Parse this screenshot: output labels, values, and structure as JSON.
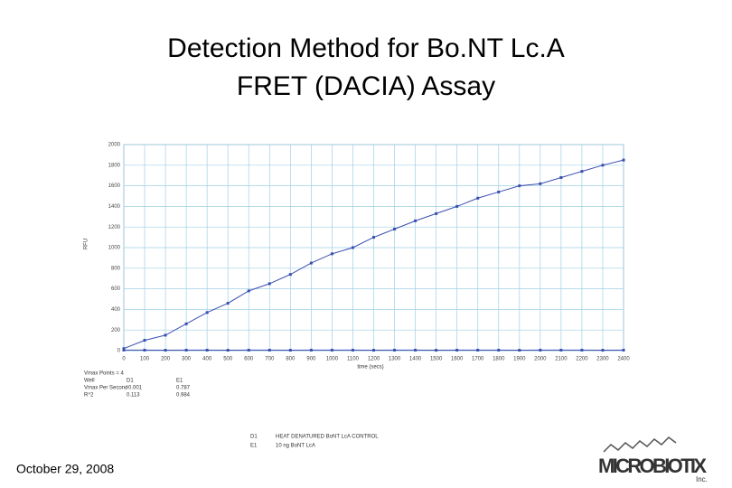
{
  "chart_data": {
    "type": "line",
    "title": [
      "Detection Method for Bo.NT Lc.A",
      "FRET (DACIA) Assay"
    ],
    "x_label": "time (secs)",
    "y_label": "RFU",
    "x": [
      0,
      100,
      200,
      300,
      400,
      500,
      600,
      700,
      800,
      900,
      1000,
      1100,
      1200,
      1300,
      1400,
      1500,
      1600,
      1700,
      1800,
      1900,
      2000,
      2100,
      2200,
      2300,
      2400
    ],
    "series": [
      {
        "name": "D1",
        "description": "HEAT DENATURED BoNT LcA CONTROL",
        "color": "#3a4fb0",
        "values": [
          5,
          5,
          4,
          5,
          5,
          4,
          5,
          5,
          4,
          5,
          5,
          5,
          4,
          5,
          5,
          4,
          5,
          5,
          5,
          4,
          5,
          5,
          5,
          4,
          5
        ]
      },
      {
        "name": "E1",
        "description": "10 ng BoNT LcA",
        "color": "#3a4fb0",
        "values": [
          20,
          100,
          150,
          260,
          370,
          460,
          580,
          650,
          740,
          850,
          940,
          1000,
          1100,
          1180,
          1260,
          1330,
          1400,
          1480,
          1540,
          1600,
          1620,
          1680,
          1740,
          1800,
          1850
        ]
      }
    ],
    "xlim": [
      0,
      2400
    ],
    "xticks": [
      0,
      100,
      200,
      300,
      400,
      500,
      600,
      700,
      800,
      900,
      1000,
      1100,
      1200,
      1300,
      1400,
      1500,
      1600,
      1700,
      1800,
      1900,
      2000,
      2100,
      2200,
      2300,
      2400
    ],
    "ylim": [
      0,
      2000
    ],
    "yticks": [
      0,
      200,
      400,
      600,
      800,
      1000,
      1200,
      1400,
      1600,
      1800,
      2000
    ],
    "grid": true,
    "stats": {
      "heading": "Vmax Points = 4",
      "columns": [
        "Well",
        "D1",
        "E1"
      ],
      "rows": [
        [
          "Vmax Per Second",
          "-0.001",
          "0.787"
        ],
        [
          "R^2",
          "0.113",
          "0.984"
        ]
      ]
    }
  },
  "footer": {
    "date": "October 29, 2008",
    "logo": "MICROBIOTIX",
    "logo_sub": "Inc."
  }
}
